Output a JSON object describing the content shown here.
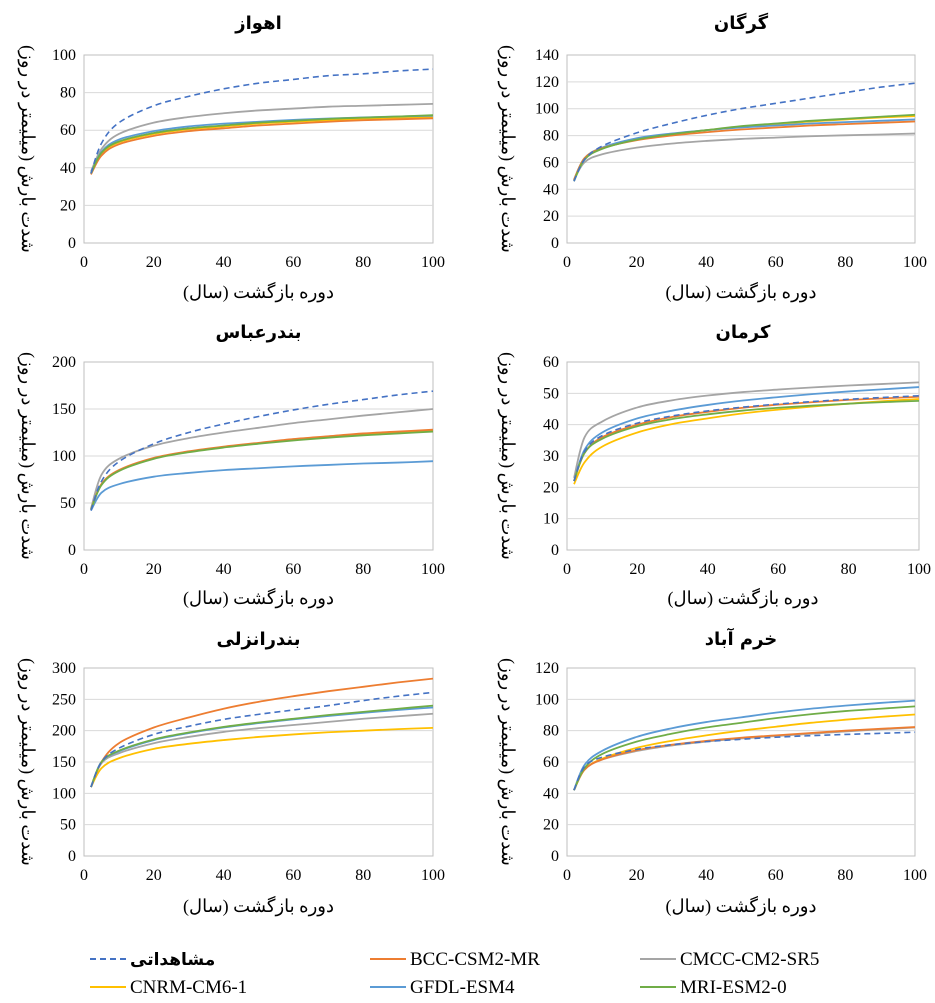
{
  "colors": {
    "observed": "#4472C4",
    "BCC": "#ED7D31",
    "CMCC": "#A5A5A5",
    "CNRM": "#FFC000",
    "GFDL": "#5B9BD5",
    "MRI": "#70AD47"
  },
  "legend": [
    {
      "key": "observed",
      "label": "مشاهداتی",
      "dashed": true
    },
    {
      "key": "BCC",
      "label": "BCC-CSM2-MR",
      "dashed": false
    },
    {
      "key": "CMCC",
      "label": "CMCC-CM2-SR5",
      "dashed": false
    },
    {
      "key": "CNRM",
      "label": "CNRM-CM6-1",
      "dashed": false
    },
    {
      "key": "GFDL",
      "label": "GFDL-ESM4",
      "dashed": false
    },
    {
      "key": "MRI",
      "label": "MRI-ESM2-0",
      "dashed": false
    }
  ],
  "chart_data": [
    {
      "type": "line",
      "title": "اهواز",
      "xlabel": "دوره بازگشت (سال)",
      "ylabel": "شدت بارش (میلیمتر در روز)",
      "xlim": [
        0,
        100
      ],
      "ylim": [
        0,
        100
      ],
      "xticks": [
        0,
        20,
        40,
        60,
        80,
        100
      ],
      "yticks": [
        0,
        20,
        40,
        60,
        80,
        100
      ],
      "grid": true,
      "x": [
        2,
        5,
        10,
        20,
        30,
        40,
        50,
        60,
        70,
        80,
        90,
        100
      ],
      "series": [
        {
          "key": "observed",
          "name": "مشاهداتی",
          "values": [
            37,
            53,
            64,
            73,
            78,
            82,
            85,
            87,
            89,
            90,
            91.5,
            92.5
          ]
        },
        {
          "key": "CMCC",
          "name": "CMCC-CM2-SR5",
          "values": [
            38,
            50,
            58,
            64,
            67,
            69,
            70.5,
            71.5,
            72.5,
            73,
            73.5,
            74
          ]
        },
        {
          "key": "MRI",
          "name": "MRI-ESM2-0",
          "values": [
            37,
            48,
            54,
            58.5,
            61,
            62.5,
            64,
            65,
            66,
            66.7,
            67.3,
            68
          ]
        },
        {
          "key": "GFDL",
          "name": "GFDL-ESM4",
          "values": [
            37,
            48.5,
            55,
            59.5,
            62,
            63.5,
            64.5,
            65.5,
            66.2,
            66.8,
            67.3,
            67.7
          ]
        },
        {
          "key": "CNRM",
          "name": "CNRM-CM6-1",
          "values": [
            37,
            47.5,
            53.5,
            58,
            60.5,
            62,
            63.5,
            64.5,
            65.3,
            66,
            66.5,
            67
          ]
        },
        {
          "key": "BCC",
          "name": "BCC-CSM2-MR",
          "values": [
            36.5,
            46.5,
            52.5,
            57,
            59.5,
            61,
            62.5,
            63.5,
            64.5,
            65.3,
            65.8,
            66.3
          ]
        }
      ]
    },
    {
      "type": "line",
      "title": "گرگان",
      "xlabel": "دوره بازگشت (سال)",
      "ylabel": "شدت بارش (میلیمتر در روز)",
      "xlim": [
        0,
        100
      ],
      "ylim": [
        0,
        140
      ],
      "xticks": [
        0,
        20,
        40,
        60,
        80,
        100
      ],
      "yticks": [
        0,
        20,
        40,
        60,
        80,
        100,
        120,
        140
      ],
      "grid": true,
      "x": [
        2,
        5,
        10,
        20,
        30,
        40,
        50,
        60,
        70,
        80,
        90,
        100
      ],
      "series": [
        {
          "key": "observed",
          "name": "مشاهداتی",
          "values": [
            46,
            62,
            72,
            82,
            89,
            95,
            100,
            104,
            108,
            112,
            116,
            119
          ]
        },
        {
          "key": "MRI",
          "name": "MRI-ESM2-0",
          "values": [
            46,
            62,
            70,
            77,
            81,
            84,
            87,
            89,
            91,
            92.5,
            94,
            95.5
          ]
        },
        {
          "key": "CNRM",
          "name": "CNRM-CM6-1",
          "values": [
            47,
            62.5,
            70.5,
            77,
            81,
            84,
            86.5,
            88.5,
            90.5,
            92,
            93.5,
            94.5
          ]
        },
        {
          "key": "GFDL",
          "name": "GFDL-ESM4",
          "values": [
            47,
            63,
            71,
            78,
            81.5,
            84,
            86,
            87.5,
            89,
            90,
            91,
            92
          ]
        },
        {
          "key": "BCC",
          "name": "BCC-CSM2-MR",
          "values": [
            47,
            63,
            70.5,
            76.5,
            80,
            82.5,
            84.5,
            86,
            87.5,
            88.5,
            89.5,
            90.5
          ]
        },
        {
          "key": "CMCC",
          "name": "CMCC-CM2-SR5",
          "values": [
            47,
            60,
            66,
            71,
            74,
            76,
            77.5,
            78.5,
            79.5,
            80.2,
            80.8,
            81.5
          ]
        }
      ]
    },
    {
      "type": "line",
      "title": "بندرعباس",
      "xlabel": "دوره بازگشت (سال)",
      "ylabel": "شدت بارش (میلیمتر در روز)",
      "xlim": [
        0,
        100
      ],
      "ylim": [
        0,
        200
      ],
      "xticks": [
        0,
        20,
        40,
        60,
        80,
        100
      ],
      "yticks": [
        0,
        50,
        100,
        150,
        200
      ],
      "grid": true,
      "x": [
        2,
        5,
        10,
        20,
        30,
        40,
        50,
        60,
        70,
        80,
        90,
        100
      ],
      "series": [
        {
          "key": "observed",
          "name": "مشاهداتی",
          "values": [
            42,
            73,
            94,
            113,
            125,
            134,
            142,
            149,
            155,
            160,
            165,
            169
          ]
        },
        {
          "key": "CMCC",
          "name": "CMCC-CM2-SR5",
          "values": [
            44,
            80,
            97,
            111,
            119,
            125,
            130,
            135,
            139,
            143,
            146.5,
            150
          ]
        },
        {
          "key": "BCC",
          "name": "BCC-CSM2-MR",
          "values": [
            43,
            70,
            85,
            98,
            105,
            110,
            114,
            118,
            121,
            124,
            126,
            128
          ]
        },
        {
          "key": "CNRM",
          "name": "CNRM-CM6-1",
          "values": [
            43,
            70,
            84.5,
            97.5,
            104.5,
            109.5,
            113.5,
            117,
            120,
            122.5,
            124.5,
            126.5
          ]
        },
        {
          "key": "MRI",
          "name": "MRI-ESM2-0",
          "values": [
            43,
            69,
            84,
            97,
            104,
            109,
            113,
            116.5,
            119.5,
            122,
            124,
            126
          ]
        },
        {
          "key": "GFDL",
          "name": "GFDL-ESM4",
          "values": [
            42,
            61,
            70,
            78,
            82,
            85,
            87,
            89,
            90.5,
            92,
            93,
            94.5
          ]
        }
      ]
    },
    {
      "type": "line",
      "title": "کرمان",
      "xlabel": "دوره بازگشت (سال)",
      "ylabel": "شدت بارش (میلیمتر در روز)",
      "xlim": [
        0,
        100
      ],
      "ylim": [
        0,
        60
      ],
      "xticks": [
        0,
        20,
        40,
        60,
        80,
        100
      ],
      "yticks": [
        0,
        10,
        20,
        30,
        40,
        50,
        60
      ],
      "grid": true,
      "x": [
        2,
        5,
        10,
        20,
        30,
        40,
        50,
        60,
        70,
        80,
        90,
        100
      ],
      "series": [
        {
          "key": "CMCC",
          "name": "CMCC-CM2-SR5",
          "values": [
            23,
            36,
            41,
            45.5,
            47.8,
            49.3,
            50.4,
            51.2,
            51.9,
            52.5,
            53,
            53.5
          ]
        },
        {
          "key": "GFDL",
          "name": "GFDL-ESM4",
          "values": [
            22,
            32,
            37.5,
            42,
            44.5,
            46.3,
            47.7,
            48.8,
            49.8,
            50.6,
            51.3,
            52
          ]
        },
        {
          "key": "observed",
          "name": "مشاهداتی",
          "values": [
            22,
            31.5,
            36.5,
            40.5,
            42.8,
            44.4,
            45.6,
            46.6,
            47.4,
            48.1,
            48.7,
            49.2
          ]
        },
        {
          "key": "BCC",
          "name": "BCC-CSM2-MR",
          "values": [
            22,
            31,
            36,
            40,
            42.5,
            44.1,
            45.4,
            46.4,
            47.2,
            47.9,
            48.4,
            48.9
          ]
        },
        {
          "key": "MRI",
          "name": "MRI-ESM2-0",
          "values": [
            22,
            31,
            35.5,
            39.5,
            41.8,
            43.3,
            44.5,
            45.4,
            46.1,
            46.7,
            47.2,
            47.6
          ]
        },
        {
          "key": "CNRM",
          "name": "CNRM-CM6-1",
          "values": [
            21,
            28,
            33,
            37.5,
            40.2,
            42,
            43.6,
            44.8,
            45.8,
            46.7,
            47.5,
            48.2
          ]
        }
      ]
    },
    {
      "type": "line",
      "title": "بندرانزلی",
      "xlabel": "دوره بازگشت (سال)",
      "ylabel": "شدت بارش (میلیمتر در روز)",
      "xlim": [
        0,
        100
      ],
      "ylim": [
        0,
        300
      ],
      "xticks": [
        0,
        20,
        40,
        60,
        80,
        100
      ],
      "yticks": [
        0,
        50,
        100,
        150,
        200,
        250,
        300
      ],
      "grid": true,
      "x": [
        2,
        5,
        10,
        20,
        30,
        40,
        50,
        60,
        70,
        80,
        90,
        100
      ],
      "series": [
        {
          "key": "BCC",
          "name": "BCC-CSM2-MR",
          "values": [
            110,
            150,
            180,
            205,
            221,
            235,
            246,
            255,
            263,
            270,
            277,
            283
          ]
        },
        {
          "key": "observed",
          "name": "مشاهداتی",
          "values": [
            110,
            150,
            172,
            194,
            207,
            218,
            226,
            233,
            240,
            248,
            255,
            261
          ]
        },
        {
          "key": "MRI",
          "name": "MRI-ESM2-0",
          "values": [
            110,
            150,
            168,
            186,
            197,
            206,
            213,
            219,
            225,
            230,
            235,
            240
          ]
        },
        {
          "key": "GFDL",
          "name": "GFDL-ESM4",
          "values": [
            110,
            150,
            167,
            185,
            196,
            205,
            212,
            218,
            223.5,
            228.5,
            233,
            237
          ]
        },
        {
          "key": "CMCC",
          "name": "CMCC-CM2-SR5",
          "values": [
            110,
            148,
            164,
            180,
            190,
            198,
            204,
            209,
            214,
            219,
            223,
            227
          ]
        },
        {
          "key": "CNRM",
          "name": "CNRM-CM6-1",
          "values": [
            110,
            140,
            156,
            171,
            179,
            185,
            190,
            194,
            197.5,
            200,
            202.5,
            204.5
          ]
        }
      ]
    },
    {
      "type": "line",
      "title": "خرم آباد",
      "xlabel": "دوره بازگشت (سال)",
      "ylabel": "شدت بارش (میلیمتر در روز)",
      "xlim": [
        0,
        100
      ],
      "ylim": [
        0,
        120
      ],
      "xticks": [
        0,
        20,
        40,
        60,
        80,
        100
      ],
      "yticks": [
        0,
        20,
        40,
        60,
        80,
        100,
        120
      ],
      "grid": true,
      "x": [
        2,
        5,
        10,
        20,
        30,
        40,
        50,
        60,
        70,
        80,
        90,
        100
      ],
      "series": [
        {
          "key": "GFDL",
          "name": "GFDL-ESM4",
          "values": [
            42,
            58,
            67,
            76,
            81.5,
            85.5,
            88.5,
            91.5,
            94,
            96,
            97.7,
            99.2
          ]
        },
        {
          "key": "MRI",
          "name": "MRI-ESM2-0",
          "values": [
            42,
            56,
            65,
            73,
            78,
            82,
            85,
            88,
            90.5,
            92.5,
            94,
            95.5
          ]
        },
        {
          "key": "CNRM",
          "name": "CNRM-CM6-1",
          "values": [
            42,
            55,
            62,
            69,
            73.5,
            77,
            80,
            82.5,
            85,
            87,
            88.8,
            90.3
          ]
        },
        {
          "key": "BCC",
          "name": "BCC-CSM2-MR",
          "values": [
            42,
            55,
            61.5,
            67.5,
            71,
            73.5,
            75.5,
            77,
            78.5,
            80,
            81.2,
            82.3
          ]
        },
        {
          "key": "CMCC",
          "name": "CMCC-CM2-SR5",
          "values": [
            42,
            55,
            61.5,
            67,
            70.5,
            73,
            75,
            76.5,
            78,
            79.5,
            80.8,
            82
          ]
        },
        {
          "key": "observed",
          "name": "مشاهداتی",
          "values": [
            42,
            57,
            63,
            68,
            71,
            73,
            74.5,
            75.8,
            76.8,
            77.6,
            78.3,
            79
          ]
        }
      ]
    }
  ]
}
